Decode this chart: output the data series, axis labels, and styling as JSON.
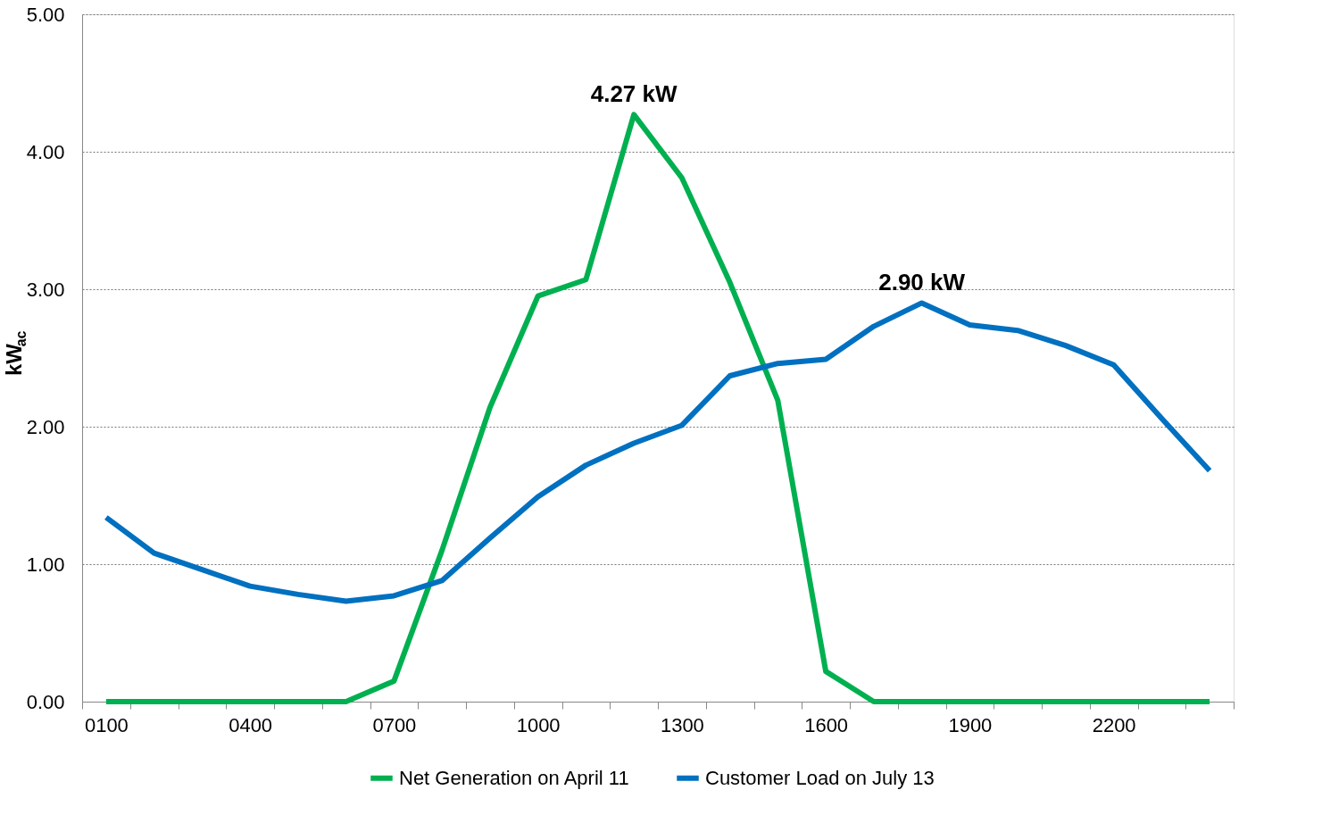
{
  "chart_data": {
    "type": "line",
    "categories": [
      "0100",
      null,
      null,
      "0400",
      null,
      null,
      "0700",
      null,
      null,
      "1000",
      null,
      null,
      "1300",
      null,
      null,
      "1600",
      null,
      null,
      "1900",
      null,
      null,
      "2200",
      null,
      null
    ],
    "series": [
      {
        "name": "Net Generation on April 11",
        "color": "#00b050",
        "values": [
          0,
          0,
          0,
          0,
          0,
          0,
          0.15,
          1.1,
          2.14,
          2.95,
          3.07,
          4.27,
          3.81,
          3.05,
          2.19,
          0.22,
          0,
          0,
          0,
          0,
          0,
          0,
          0,
          0
        ]
      },
      {
        "name": "Customer Load on July 13",
        "color": "#0070c0",
        "values": [
          1.34,
          1.08,
          0.96,
          0.84,
          0.78,
          0.73,
          0.77,
          0.88,
          1.19,
          1.49,
          1.72,
          1.88,
          2.01,
          2.37,
          2.46,
          2.49,
          2.73,
          2.9,
          2.74,
          2.7,
          2.59,
          2.45,
          2.06,
          1.68
        ]
      }
    ],
    "ylabel": "kW$_{ac}$",
    "ylim": [
      0,
      5
    ],
    "yticks": [
      {
        "value": 0,
        "label": "0.00"
      },
      {
        "value": 1,
        "label": "1.00"
      },
      {
        "value": 2,
        "label": "2.00"
      },
      {
        "value": 3,
        "label": "3.00"
      },
      {
        "value": 4,
        "label": "4.00"
      },
      {
        "value": 5,
        "label": "5.00"
      }
    ],
    "annotations": [
      "4.27 kW",
      "2.90 kW"
    ],
    "grid": "y",
    "legend": "bottom",
    "marker": "none",
    "line_style": "solid"
  }
}
